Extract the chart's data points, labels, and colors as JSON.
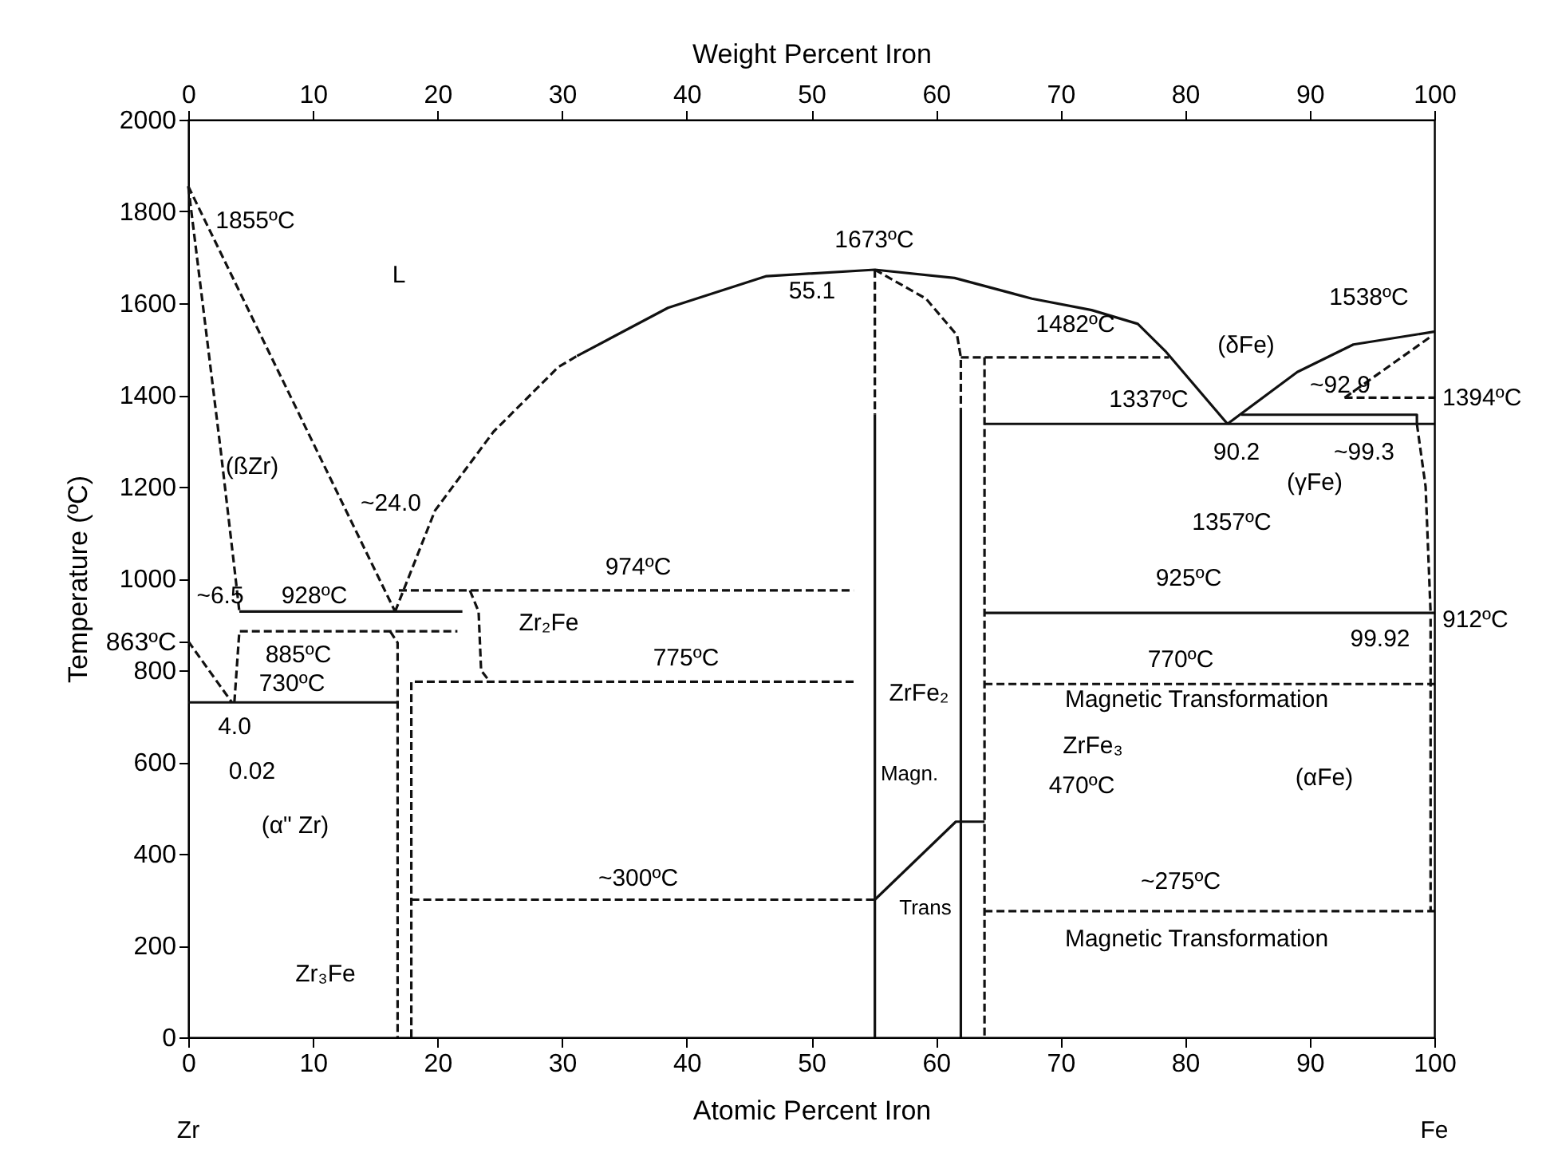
{
  "chart_data": {
    "type": "line",
    "xlabel": "Atomic Percent Iron",
    "ylabel": "Temperature (ºC)",
    "x2label": "Weight Percent Iron",
    "xlim": [
      0,
      100
    ],
    "xticks": [
      0,
      10,
      20,
      30,
      40,
      50,
      60,
      70,
      80,
      90,
      100
    ],
    "x2lim": [
      0,
      100
    ],
    "x2ticks": [
      0,
      10,
      20,
      30,
      40,
      50,
      60,
      70,
      80,
      90,
      100
    ],
    "ylim": [
      0,
      2000
    ],
    "yticks": [
      0,
      200,
      400,
      600,
      800,
      {
        "value": 863,
        "label": "863ºC"
      },
      1000,
      1200,
      1400,
      1600,
      1800,
      2000
    ],
    "series": [
      {
        "color": "#111111",
        "line_style": "dashed",
        "x": [
          0,
          16.6
        ],
        "values": [
          1855,
          928
        ]
      },
      {
        "color": "#111111",
        "line_style": "dashed",
        "x": [
          0,
          2.6,
          3.8,
          4.1
        ],
        "values": [
          1855,
          1280,
          1000,
          928
        ]
      },
      {
        "color": "#111111",
        "line_style": "dashed",
        "x": [
          16.6,
          19.8,
          24.5,
          29.7,
          31.2
        ],
        "values": [
          928,
          1148,
          1320,
          1461,
          1485
        ]
      },
      {
        "color": "#111111",
        "line_style": "solid",
        "x": [
          31.2,
          38.5,
          46.4,
          55.1,
          61.5,
          67.7,
          72.5,
          76.2,
          78.4,
          83.4
        ],
        "values": [
          1485,
          1590,
          1659,
          1673,
          1655,
          1610,
          1585,
          1555,
          1496,
          1337
        ]
      },
      {
        "color": "#111111",
        "line_style": "solid",
        "x": [
          4.1,
          22.0
        ],
        "values": [
          928,
          928
        ]
      },
      {
        "color": "#111111",
        "line_style": "dashed",
        "x": [
          16.9,
          53.4
        ],
        "values": [
          974,
          974
        ]
      },
      {
        "color": "#111111",
        "line_style": "dashed",
        "x": [
          22.6,
          23.3,
          23.5,
          24.2
        ],
        "values": [
          974,
          928,
          800,
          775
        ]
      },
      {
        "color": "#111111",
        "line_style": "dashed",
        "x": [
          3.7,
          4.1,
          21.6
        ],
        "values": [
          730,
          885,
          885
        ]
      },
      {
        "color": "#111111",
        "line_style": "dashed",
        "x": [
          16.2,
          16.8,
          16.8
        ],
        "values": [
          885,
          860,
          0
        ]
      },
      {
        "color": "#111111",
        "line_style": "dashed",
        "x": [
          17.9,
          17.9,
          53.4
        ],
        "values": [
          0,
          775,
          775
        ]
      },
      {
        "color": "#111111",
        "line_style": "solid",
        "x": [
          0,
          16.8
        ],
        "values": [
          730,
          730
        ]
      },
      {
        "color": "#111111",
        "line_style": "dashed",
        "x": [
          0,
          3.5
        ],
        "values": [
          863,
          730
        ]
      },
      {
        "color": "#111111",
        "line_style": "dashed",
        "x": [
          17.9,
          55.1
        ],
        "values": [
          300,
          300
        ]
      },
      {
        "color": "#111111",
        "line_style": "dashed",
        "x": [
          55.1,
          55.1
        ],
        "values": [
          1673,
          1357
        ]
      },
      {
        "color": "#111111",
        "line_style": "solid",
        "x": [
          55.1,
          55.1
        ],
        "values": [
          1357,
          0
        ]
      },
      {
        "color": "#111111",
        "line_style": "dashed",
        "x": [
          55.1,
          59.2,
          61.7,
          62.0,
          62.0
        ],
        "values": [
          1673,
          1610,
          1530,
          1482,
          1370
        ]
      },
      {
        "color": "#111111",
        "line_style": "solid",
        "x": [
          62.0,
          62.0
        ],
        "values": [
          1370,
          0
        ]
      },
      {
        "color": "#111111",
        "line_style": "solid",
        "x": [
          55.1,
          61.6,
          63.9
        ],
        "values": [
          300,
          470,
          470
        ]
      },
      {
        "color": "#111111",
        "line_style": "dashed",
        "x": [
          62.0,
          78.7
        ],
        "values": [
          1482,
          1482
        ]
      },
      {
        "color": "#111111",
        "line_style": "dashed",
        "x": [
          63.9,
          63.9
        ],
        "values": [
          1482,
          0
        ]
      },
      {
        "color": "#111111",
        "line_style": "solid",
        "x": [
          63.9,
          100
        ],
        "values": [
          1337,
          1337
        ]
      },
      {
        "color": "#111111",
        "line_style": "solid",
        "x": [
          63.9,
          100
        ],
        "values": [
          925,
          925
        ]
      },
      {
        "color": "#111111",
        "line_style": "dashed",
        "x": [
          63.9,
          100
        ],
        "values": [
          770,
          770
        ]
      },
      {
        "color": "#111111",
        "line_style": "dashed",
        "x": [
          63.9,
          100
        ],
        "values": [
          275,
          275
        ]
      },
      {
        "color": "#111111",
        "line_style": "solid",
        "x": [
          83.4,
          89.0,
          93.5,
          100
        ],
        "values": [
          1337,
          1450,
          1510,
          1538
        ]
      },
      {
        "color": "#111111",
        "line_style": "dashed",
        "x": [
          92.8,
          99.6
        ],
        "values": [
          1394,
          1525
        ]
      },
      {
        "color": "#111111",
        "line_style": "dashed",
        "x": [
          92.8,
          100
        ],
        "values": [
          1394,
          1394
        ]
      },
      {
        "color": "#111111",
        "line_style": "solid",
        "x": [
          84.5,
          98.6,
          98.6
        ],
        "values": [
          1357,
          1357,
          1337
        ]
      },
      {
        "color": "#111111",
        "line_style": "dashed",
        "x": [
          98.6,
          99.3,
          99.7
        ],
        "values": [
          1337,
          1200,
          925
        ]
      },
      {
        "color": "#111111",
        "line_style": "dashed",
        "x": [
          99.7,
          99.7
        ],
        "values": [
          912,
          275
        ]
      }
    ],
    "annotations": [
      "1855ºC",
      "L",
      "1673ºC",
      "55.1",
      "1482ºC",
      "1538ºC",
      "(δFe)",
      "~92.9",
      "1394ºC",
      "1337ºC",
      "90.2",
      "~99.3",
      "(γFe)",
      "1357ºC",
      "(ßZr)",
      "~24.0",
      "~6.5",
      "928ºC",
      "974ºC",
      "Zr₂Fe",
      "885ºC",
      "775ºC",
      "730ºC",
      "4.0",
      "0.02",
      "(α\" Zr)",
      "~300ºC",
      "Zr₃Fe",
      "ZrFe₂",
      "Magn.",
      "Trans",
      "925ºC",
      "912ºC",
      "99.92",
      "770ºC",
      "Magnetic Transformation",
      "ZrFe₃",
      "470ºC",
      "(αFe)",
      "~275ºC",
      "Magnetic Transformation",
      "Zr",
      "Fe"
    ]
  }
}
